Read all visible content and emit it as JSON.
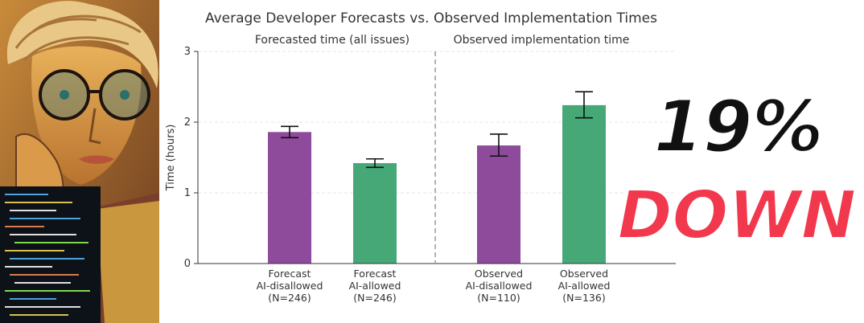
{
  "colors": {
    "ai_disallowed": "#8e4a9b",
    "ai_allowed": "#45a876",
    "headline_primary": "#111111",
    "headline_accent": "#f2384d"
  },
  "illustration": {
    "icon": "portrait-with-glasses-and-code-illustration"
  },
  "headline": {
    "line1": "19%",
    "line2": "DOWN"
  },
  "chart_data": {
    "type": "bar",
    "title": "Average Developer Forecasts vs. Observed Implementation Times",
    "ylabel": "Time (hours)",
    "ylim": [
      0,
      3
    ],
    "yticks": [
      "0",
      "1",
      "2",
      "3"
    ],
    "grid": true,
    "panels": [
      {
        "title": "Forecasted time (all issues)",
        "category_start": 0,
        "category_end": 1
      },
      {
        "title": "Observed implementation time",
        "category_start": 2,
        "category_end": 3
      }
    ],
    "categories": [
      {
        "lines": [
          "Forecast",
          "AI-disallowed",
          "(N=246)"
        ],
        "value": 1.86,
        "err_low": 1.78,
        "err_high": 1.94,
        "color_key": "ai_disallowed"
      },
      {
        "lines": [
          "Forecast",
          "AI-allowed",
          "(N=246)"
        ],
        "value": 1.42,
        "err_low": 1.36,
        "err_high": 1.48,
        "color_key": "ai_allowed"
      },
      {
        "lines": [
          "Observed",
          "AI-disallowed",
          "(N=110)"
        ],
        "value": 1.67,
        "err_low": 1.52,
        "err_high": 1.83,
        "color_key": "ai_disallowed"
      },
      {
        "lines": [
          "Observed",
          "AI-allowed",
          "(N=136)"
        ],
        "value": 2.24,
        "err_low": 2.06,
        "err_high": 2.43,
        "color_key": "ai_allowed"
      }
    ]
  }
}
